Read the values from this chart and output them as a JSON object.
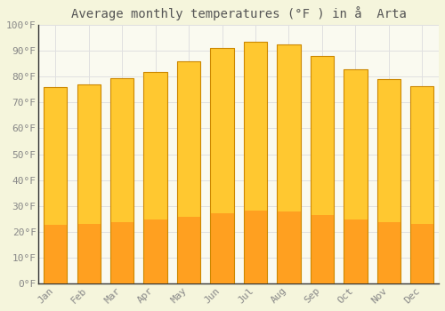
{
  "title": "Average monthly temperatures (°F ) in å  Arta",
  "months": [
    "Jan",
    "Feb",
    "Mar",
    "Apr",
    "May",
    "Jun",
    "Jul",
    "Aug",
    "Sep",
    "Oct",
    "Nov",
    "Dec"
  ],
  "values": [
    76,
    77,
    79.5,
    82,
    86,
    91,
    93.5,
    92.5,
    88,
    83,
    79,
    76.5
  ],
  "bar_color": "#FFA500",
  "bar_color_gradient_top": "#FFD966",
  "bar_color_gradient_bottom": "#FF9800",
  "background_color": "#F5F5DC",
  "plot_bg_color": "#FAFAF0",
  "grid_color": "#E0E0E0",
  "ylim": [
    0,
    100
  ],
  "yticks": [
    0,
    10,
    20,
    30,
    40,
    50,
    60,
    70,
    80,
    90,
    100
  ],
  "ytick_labels": [
    "0°F",
    "10°F",
    "20°F",
    "30°F",
    "40°F",
    "50°F",
    "60°F",
    "70°F",
    "80°F",
    "90°F",
    "100°F"
  ],
  "title_fontsize": 10,
  "tick_fontsize": 8,
  "tick_color": "#888888",
  "font_family": "monospace",
  "spine_color": "#333333"
}
